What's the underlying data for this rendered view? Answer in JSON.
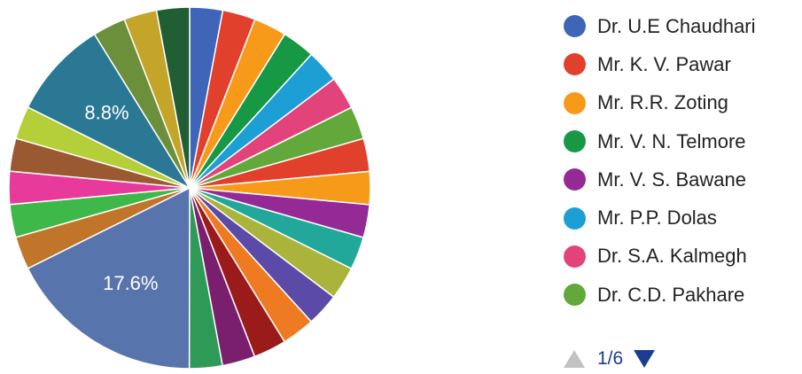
{
  "chart_data": {
    "type": "pie",
    "title": "",
    "legend": {
      "placement": "right",
      "entries": [
        {
          "label": "Dr. U.E Chaudhari",
          "color": "#3e65b8"
        },
        {
          "label": "Mr. K. V. Pawar",
          "color": "#e0402c"
        },
        {
          "label": "Mr. R.R. Zoting",
          "color": "#f79a1a"
        },
        {
          "label": "Mr. V. N. Telmore",
          "color": "#179845"
        },
        {
          "label": "Mr. V. S. Bawane",
          "color": "#952a96"
        },
        {
          "label": "Mr. P.P. Dolas",
          "color": "#1d9fd6"
        },
        {
          "label": "Dr. S.A. Kalmegh",
          "color": "#e2437a"
        },
        {
          "label": "Dr. C.D. Pakhare",
          "color": "#63a83a"
        }
      ]
    },
    "slices": [
      {
        "value": 2.94,
        "color": "#3e65b8"
      },
      {
        "value": 2.94,
        "color": "#e0402c"
      },
      {
        "value": 2.94,
        "color": "#f79a1a"
      },
      {
        "value": 2.94,
        "color": "#179845"
      },
      {
        "value": 2.94,
        "color": "#1d9fd6"
      },
      {
        "value": 2.94,
        "color": "#e2437a"
      },
      {
        "value": 2.94,
        "color": "#63a83a"
      },
      {
        "value": 2.94,
        "color": "#e0402c"
      },
      {
        "value": 2.94,
        "color": "#f79a1a"
      },
      {
        "value": 2.94,
        "color": "#952a96"
      },
      {
        "value": 2.94,
        "color": "#22a89a"
      },
      {
        "value": 2.94,
        "color": "#aab43a"
      },
      {
        "value": 2.94,
        "color": "#5b4aa8"
      },
      {
        "value": 2.94,
        "color": "#ee7a22"
      },
      {
        "value": 2.94,
        "color": "#9b1a1a"
      },
      {
        "value": 2.94,
        "color": "#7a1f6e"
      },
      {
        "value": 2.94,
        "color": "#2f9a57"
      },
      {
        "value": 17.6,
        "color": "#5874ac",
        "label": "17.6%"
      },
      {
        "value": 2.94,
        "color": "#c0752a"
      },
      {
        "value": 2.94,
        "color": "#3fb84a"
      },
      {
        "value": 2.94,
        "color": "#e83a9a"
      },
      {
        "value": 2.94,
        "color": "#9a5930"
      },
      {
        "value": 2.94,
        "color": "#b5cf3a"
      },
      {
        "value": 8.8,
        "color": "#2a7894",
        "label": "8.8%"
      },
      {
        "value": 2.94,
        "color": "#6b8f3a"
      },
      {
        "value": 2.94,
        "color": "#c4a52a"
      },
      {
        "value": 2.94,
        "color": "#215e33"
      }
    ]
  },
  "pager": {
    "text": "1/6"
  }
}
